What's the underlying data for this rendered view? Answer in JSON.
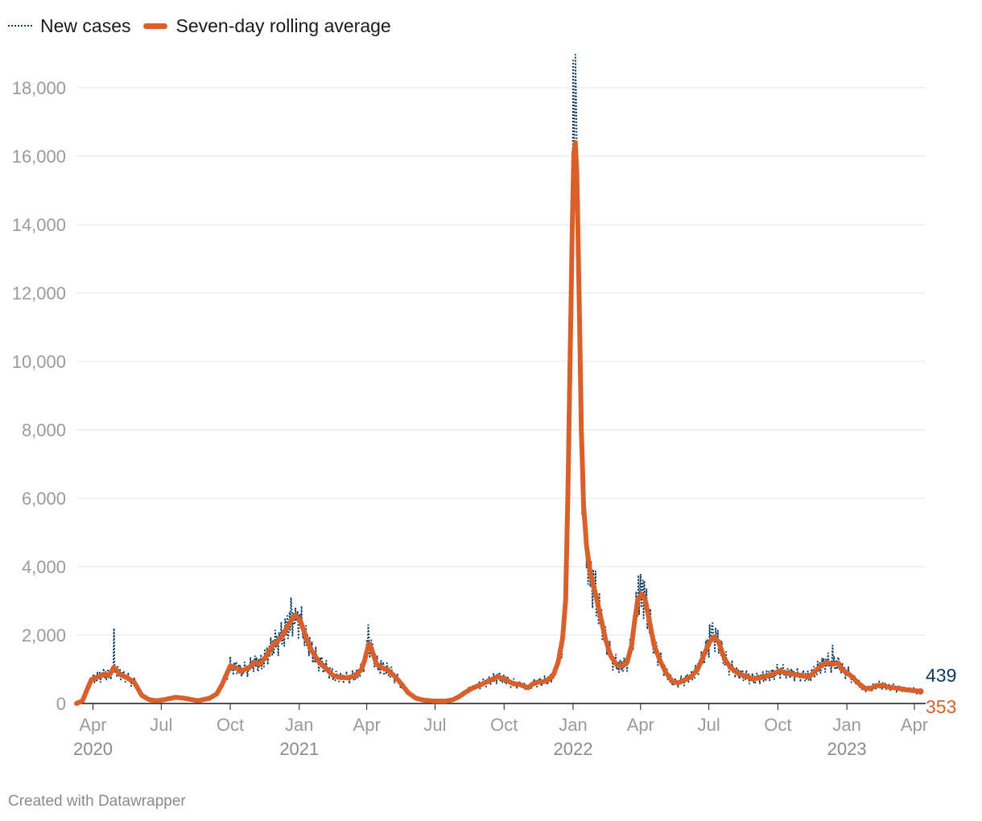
{
  "legend": {
    "new_cases": "New cases",
    "rolling_avg": "Seven-day rolling average"
  },
  "credit": "Created with Datawrapper",
  "colors": {
    "new_cases": "#0d3a5c",
    "rolling_avg": "#d9602a",
    "grid": "#e3e3e3"
  },
  "chart_data": {
    "type": "line",
    "title": "",
    "xlabel": "",
    "ylabel": "",
    "ylim": [
      0,
      18000
    ],
    "y_ticks": [
      {
        "value": 0,
        "label": "0"
      },
      {
        "value": 2000,
        "label": "2,000"
      },
      {
        "value": 4000,
        "label": "4,000"
      },
      {
        "value": 6000,
        "label": "6,000"
      },
      {
        "value": 8000,
        "label": "8,000"
      },
      {
        "value": 10000,
        "label": "10,000"
      },
      {
        "value": 12000,
        "label": "12,000"
      },
      {
        "value": 14000,
        "label": "14,000"
      },
      {
        "value": 16000,
        "label": "16,000"
      },
      {
        "value": 18000,
        "label": "18,000"
      }
    ],
    "x_range_days": [
      -22,
      1110
    ],
    "x_ticks": [
      {
        "day": 0,
        "label": "Apr"
      },
      {
        "day": 91,
        "label": "Jul"
      },
      {
        "day": 183,
        "label": "Oct"
      },
      {
        "day": 275,
        "label": "Jan"
      },
      {
        "day": 365,
        "label": "Apr"
      },
      {
        "day": 456,
        "label": "Jul"
      },
      {
        "day": 548,
        "label": "Oct"
      },
      {
        "day": 640,
        "label": "Jan"
      },
      {
        "day": 730,
        "label": "Apr"
      },
      {
        "day": 821,
        "label": "Jul"
      },
      {
        "day": 913,
        "label": "Oct"
      },
      {
        "day": 1005,
        "label": "Jan"
      },
      {
        "day": 1095,
        "label": "Apr"
      }
    ],
    "year_labels": [
      {
        "day": 0,
        "label": "2020"
      },
      {
        "day": 275,
        "label": "2021"
      },
      {
        "day": 640,
        "label": "2022"
      },
      {
        "day": 1005,
        "label": "2023"
      }
    ],
    "series": [
      {
        "name": "Seven-day rolling average",
        "anchors": [
          [
            -22,
            0
          ],
          [
            -14,
            80
          ],
          [
            -7,
            450
          ],
          [
            -2,
            700
          ],
          [
            5,
            760
          ],
          [
            15,
            850
          ],
          [
            22,
            830
          ],
          [
            28,
            1060
          ],
          [
            35,
            870
          ],
          [
            45,
            760
          ],
          [
            55,
            620
          ],
          [
            65,
            240
          ],
          [
            75,
            110
          ],
          [
            85,
            80
          ],
          [
            95,
            110
          ],
          [
            110,
            180
          ],
          [
            120,
            160
          ],
          [
            130,
            120
          ],
          [
            140,
            80
          ],
          [
            155,
            150
          ],
          [
            165,
            280
          ],
          [
            172,
            550
          ],
          [
            178,
            850
          ],
          [
            183,
            1100
          ],
          [
            190,
            1050
          ],
          [
            198,
            950
          ],
          [
            208,
            1050
          ],
          [
            215,
            1200
          ],
          [
            222,
            1150
          ],
          [
            230,
            1350
          ],
          [
            240,
            1700
          ],
          [
            250,
            1900
          ],
          [
            258,
            2200
          ],
          [
            265,
            2450
          ],
          [
            270,
            2580
          ],
          [
            276,
            2450
          ],
          [
            283,
            2000
          ],
          [
            290,
            1600
          ],
          [
            300,
            1250
          ],
          [
            312,
            1000
          ],
          [
            320,
            820
          ],
          [
            330,
            760
          ],
          [
            340,
            750
          ],
          [
            350,
            820
          ],
          [
            358,
            1000
          ],
          [
            362,
            1250
          ],
          [
            366,
            1600
          ],
          [
            368,
            1750
          ],
          [
            372,
            1550
          ],
          [
            378,
            1150
          ],
          [
            385,
            1050
          ],
          [
            393,
            980
          ],
          [
            402,
            800
          ],
          [
            410,
            600
          ],
          [
            420,
            320
          ],
          [
            430,
            160
          ],
          [
            440,
            100
          ],
          [
            455,
            70
          ],
          [
            470,
            70
          ],
          [
            480,
            110
          ],
          [
            488,
            200
          ],
          [
            496,
            320
          ],
          [
            505,
            440
          ],
          [
            518,
            560
          ],
          [
            530,
            680
          ],
          [
            540,
            780
          ],
          [
            550,
            700
          ],
          [
            560,
            580
          ],
          [
            568,
            560
          ],
          [
            573,
            520
          ],
          [
            580,
            460
          ],
          [
            586,
            570
          ],
          [
            593,
            620
          ],
          [
            600,
            640
          ],
          [
            608,
            700
          ],
          [
            614,
            850
          ],
          [
            620,
            1200
          ],
          [
            626,
            1900
          ],
          [
            630,
            3000
          ],
          [
            633,
            6000
          ],
          [
            636,
            10000
          ],
          [
            639,
            14000
          ],
          [
            641,
            16100
          ],
          [
            643,
            16400
          ],
          [
            645,
            15500
          ],
          [
            648,
            12000
          ],
          [
            651,
            8000
          ],
          [
            654,
            5800
          ],
          [
            658,
            4600
          ],
          [
            663,
            3800
          ],
          [
            670,
            3200
          ],
          [
            676,
            2600
          ],
          [
            683,
            1900
          ],
          [
            690,
            1400
          ],
          [
            698,
            1130
          ],
          [
            706,
            1100
          ],
          [
            712,
            1200
          ],
          [
            718,
            1700
          ],
          [
            722,
            2400
          ],
          [
            726,
            3000
          ],
          [
            731,
            3200
          ],
          [
            736,
            3050
          ],
          [
            741,
            2500
          ],
          [
            748,
            1700
          ],
          [
            756,
            1250
          ],
          [
            764,
            900
          ],
          [
            772,
            650
          ],
          [
            780,
            600
          ],
          [
            788,
            680
          ],
          [
            798,
            800
          ],
          [
            806,
            1000
          ],
          [
            814,
            1400
          ],
          [
            822,
            1800
          ],
          [
            828,
            1950
          ],
          [
            834,
            1800
          ],
          [
            842,
            1300
          ],
          [
            850,
            1050
          ],
          [
            860,
            880
          ],
          [
            870,
            800
          ],
          [
            880,
            720
          ],
          [
            892,
            760
          ],
          [
            905,
            850
          ],
          [
            915,
            950
          ],
          [
            925,
            900
          ],
          [
            935,
            850
          ],
          [
            945,
            820
          ],
          [
            955,
            780
          ],
          [
            963,
            950
          ],
          [
            970,
            1100
          ],
          [
            978,
            1200
          ],
          [
            986,
            1150
          ],
          [
            994,
            1180
          ],
          [
            998,
            1000
          ],
          [
            1005,
            900
          ],
          [
            1012,
            780
          ],
          [
            1020,
            600
          ],
          [
            1028,
            450
          ],
          [
            1036,
            430
          ],
          [
            1044,
            520
          ],
          [
            1052,
            530
          ],
          [
            1060,
            480
          ],
          [
            1068,
            460
          ],
          [
            1076,
            430
          ],
          [
            1084,
            400
          ],
          [
            1092,
            380
          ],
          [
            1098,
            370
          ],
          [
            1103,
            353
          ]
        ]
      },
      {
        "name": "New cases",
        "spikes": [
          [
            28,
            2200
          ],
          [
            264,
            3100
          ],
          [
            270,
            2800
          ],
          [
            367,
            2300
          ],
          [
            636,
            11700
          ],
          [
            640,
            18800
          ],
          [
            642,
            16500
          ],
          [
            644,
            17900
          ],
          [
            656,
            5300
          ],
          [
            662,
            3800
          ],
          [
            727,
            3750
          ],
          [
            733,
            3600
          ],
          [
            822,
            2300
          ],
          [
            826,
            2350
          ],
          [
            986,
            1700
          ]
        ]
      }
    ],
    "end_labels": [
      {
        "series": "New cases",
        "label": "439",
        "value": 439
      },
      {
        "series": "Seven-day rolling average",
        "label": "353",
        "value": 353
      }
    ]
  }
}
